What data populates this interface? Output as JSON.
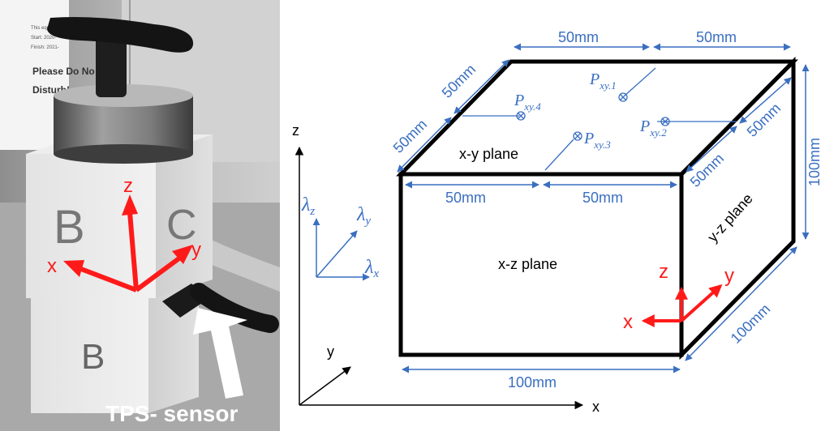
{
  "photo": {
    "sticker": {
      "line1": "This equipment",
      "line2": "Start: 2020-",
      "line3": "Finish: 2021-",
      "line4": "Please Do No",
      "line5": "Disturb!"
    },
    "block_letters": {
      "upper_left": "B",
      "upper_right": "C",
      "lower": "B"
    },
    "axes": {
      "z": "z",
      "x": "x",
      "y": "y"
    },
    "sensor_label": "TPS- sensor",
    "colors": {
      "axis": "#ff1a1a",
      "label_text": "#ffffff"
    }
  },
  "diagram": {
    "global_axes": {
      "z": "z",
      "y": "y",
      "x": "x"
    },
    "conductivity": {
      "z": "λ",
      "z_sub": "z",
      "y": "λ",
      "y_sub": "y",
      "x": "λ",
      "x_sub": "x"
    },
    "dims": {
      "top_back_left": "50mm",
      "top_back_right": "50mm",
      "left_upper": "50mm",
      "left_lower": "50mm",
      "front_top_left": "50mm",
      "front_top_right": "50mm",
      "right_upper": "50mm",
      "right_lower": "50mm",
      "height": "100mm",
      "depth": "100mm",
      "width": "100mm"
    },
    "planes": {
      "xy": "x-y plane",
      "xz": "x-z plane",
      "yz": "y-z plane"
    },
    "points": [
      {
        "base": "P",
        "sub": "xy.1"
      },
      {
        "base": "P",
        "sub": "xy.2"
      },
      {
        "base": "P",
        "sub": "xy.3"
      },
      {
        "base": "P",
        "sub": "xy.4"
      }
    ],
    "local_axes": {
      "z": "z",
      "y": "y",
      "x": "x"
    },
    "colors": {
      "dimension": "#3a6fc0",
      "axis_local": "#ff1a1a",
      "edge": "#000000"
    }
  }
}
